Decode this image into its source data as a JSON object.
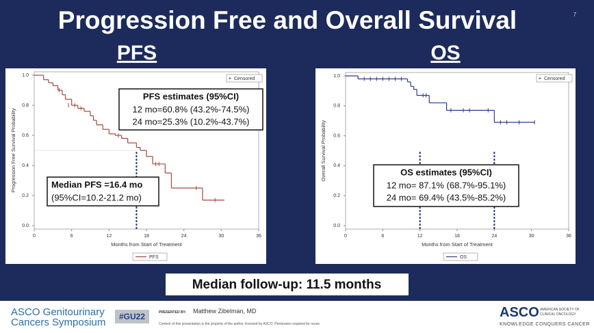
{
  "slide_number": "7",
  "title": "Progression Free and Overall Survival",
  "headings": [
    "PFS",
    "OS"
  ],
  "chart_data": [
    {
      "type": "step",
      "y_label": "Progression Free Survival Probability",
      "x_label": "Months from Start of Treatment",
      "xlim": [
        0,
        36
      ],
      "xticks": [
        0,
        6,
        12,
        18,
        24,
        30,
        36
      ],
      "ylim": [
        0,
        1
      ],
      "yticks": [
        {
          "value": 0,
          "label": "0.0"
        },
        {
          "value": 0.2,
          "label": "0.2"
        },
        {
          "value": 0.4,
          "label": "0.4"
        },
        {
          "value": 0.6,
          "label": "0.6"
        },
        {
          "value": 0.8,
          "label": "0.8"
        },
        {
          "value": 1,
          "label": "1.0"
        }
      ],
      "x": [
        0,
        1.5,
        2.3,
        3,
        3.8,
        4.5,
        5,
        6,
        7,
        8,
        9,
        9.5,
        10,
        11,
        12,
        13,
        14,
        15,
        16.4,
        17,
        18,
        19,
        21,
        22,
        27,
        30.5
      ],
      "series": [
        {
          "name": "PFS",
          "color": "#a3473f",
          "values": [
            1.0,
            0.97,
            0.95,
            0.93,
            0.9,
            0.87,
            0.84,
            0.8,
            0.78,
            0.76,
            0.73,
            0.7,
            0.67,
            0.64,
            0.61,
            0.6,
            0.58,
            0.55,
            0.52,
            0.5,
            0.46,
            0.41,
            0.35,
            0.25,
            0.17,
            0.17
          ]
        }
      ],
      "censored": {
        "label": "Censored",
        "x": [
          4,
          5.5,
          6.5,
          7.5,
          13.5,
          19.5,
          20,
          26,
          29
        ],
        "y": [
          0.9,
          0.8,
          0.8,
          0.78,
          0.6,
          0.41,
          0.41,
          0.25,
          0.17
        ]
      },
      "reference_lines": {
        "x": [
          16.4
        ],
        "y": [
          0.5
        ]
      },
      "annotations": [
        {
          "title": "PFS estimates (95%CI)",
          "lines": [
            "12 mo=60.8% (43.2%-74.5%)",
            "24 mo=25.3% (10.2%-43.7%)"
          ]
        },
        {
          "title": "Median PFS =16.4 mo",
          "lines": [
            "(95%CI=10.2-21.2 mo)"
          ]
        }
      ]
    },
    {
      "type": "step",
      "y_label": "Overall Survival Probability",
      "x_label": "Months from Start of Treatment",
      "xlim": [
        0,
        36
      ],
      "xticks": [
        0,
        6,
        12,
        18,
        24,
        30,
        36
      ],
      "ylim": [
        0,
        1
      ],
      "yticks": [
        {
          "value": 0,
          "label": "0.0"
        },
        {
          "value": 0.2,
          "label": "0.2"
        },
        {
          "value": 0.4,
          "label": "0.4"
        },
        {
          "value": 0.6,
          "label": "0.6"
        },
        {
          "value": 0.8,
          "label": "0.8"
        },
        {
          "value": 1,
          "label": "1.0"
        }
      ],
      "x": [
        0,
        2,
        10,
        10.5,
        11,
        11.5,
        13.5,
        16.3,
        24,
        30.5
      ],
      "series": [
        {
          "name": "OS",
          "color": "#2b3a8c",
          "values": [
            1.0,
            0.98,
            0.96,
            0.93,
            0.91,
            0.87,
            0.82,
            0.77,
            0.69,
            0.69
          ]
        }
      ],
      "censored": {
        "label": "Censored",
        "x": [
          3,
          4,
          5,
          6,
          7,
          8,
          9,
          12.5,
          13,
          17,
          19,
          20,
          23,
          25,
          26,
          28,
          30.5
        ],
        "y": [
          0.98,
          0.98,
          0.98,
          0.98,
          0.98,
          0.98,
          0.98,
          0.87,
          0.87,
          0.77,
          0.77,
          0.77,
          0.77,
          0.69,
          0.69,
          0.69,
          0.69
        ]
      },
      "reference_lines": {
        "x": [
          12,
          24
        ],
        "y": []
      },
      "annotations": [
        {
          "title": "OS estimates (95%CI)",
          "lines": [
            "12 mo= 87.1% (68.7%-95.1%)",
            "24 mo= 69.4% (43.5%-85.2%)"
          ]
        }
      ]
    }
  ],
  "followup": "Median follow-up: 11.5 months",
  "footer": {
    "symposium": [
      "ASCO Genitourinary",
      "Cancers Symposium"
    ],
    "hashtag": "#GU22",
    "presented_by": "PRESENTED BY:",
    "presenter": "Matthew Zibelman, MD",
    "notice": "Content of this presentation is the property of the author, licensed by ASCO. Permission required for reuse.",
    "logo": "ASCO",
    "society": [
      "AMERICAN SOCIETY OF",
      "CLINICAL ONCOLOGY"
    ],
    "tagline": "KNOWLEDGE CONQUERS CANCER"
  }
}
